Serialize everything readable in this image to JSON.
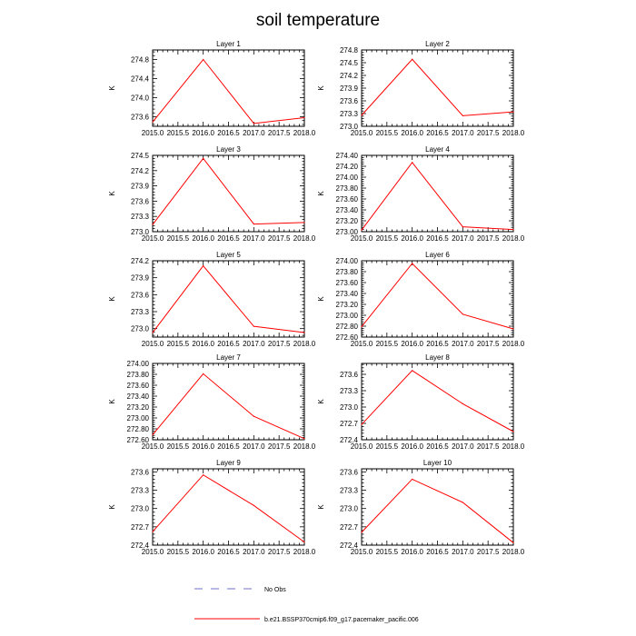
{
  "figure": {
    "title": "soil temperature",
    "legend": [
      {
        "label": "No Obs",
        "color": "#7070c8",
        "dash": true
      },
      {
        "label": "b.e21.BSSP370cmip6.f09_g17.pacemaker_pacific.006",
        "color": "#ff0000",
        "dash": false
      }
    ]
  },
  "chart_data": [
    {
      "type": "line",
      "title": "Layer 1",
      "ylabel": "K",
      "x": [
        2015.0,
        2016.0,
        2017.0,
        2018.0
      ],
      "series": [
        {
          "name": "b.e21.BSSP370cmip6.f09_g17.pacemaker_pacific.006",
          "values": [
            273.49,
            274.8,
            273.46,
            273.58
          ]
        }
      ],
      "xlim": [
        2015.0,
        2018.0
      ],
      "ylim": [
        273.4,
        275.0
      ],
      "xticks": [
        "2015.0",
        "2015.5",
        "2016.0",
        "2016.5",
        "2017.0",
        "2017.5",
        "2018.0"
      ],
      "yticks": [
        "273.6",
        "274.0",
        "274.4",
        "274.8"
      ]
    },
    {
      "type": "line",
      "title": "Layer 2",
      "ylabel": "K",
      "x": [
        2015.0,
        2016.0,
        2017.0,
        2018.0
      ],
      "series": [
        {
          "name": "b.e21.BSSP370cmip6.f09_g17.pacemaker_pacific.006",
          "values": [
            273.26,
            274.58,
            273.25,
            273.34
          ]
        }
      ],
      "xlim": [
        2015.0,
        2018.0
      ],
      "ylim": [
        273.0,
        274.8
      ],
      "xticks": [
        "2015.0",
        "2015.5",
        "2016.0",
        "2016.5",
        "2017.0",
        "2017.5",
        "2018.0"
      ],
      "yticks": [
        "273.0",
        "273.3",
        "273.6",
        "273.9",
        "274.2",
        "274.5",
        "274.8"
      ]
    },
    {
      "type": "line",
      "title": "Layer 3",
      "ylabel": "K",
      "x": [
        2015.0,
        2016.0,
        2017.0,
        2018.0
      ],
      "series": [
        {
          "name": "b.e21.BSSP370cmip6.f09_g17.pacemaker_pacific.006",
          "values": [
            273.14,
            274.44,
            273.15,
            273.18
          ]
        }
      ],
      "xlim": [
        2015.0,
        2018.0
      ],
      "ylim": [
        273.0,
        274.5
      ],
      "xticks": [
        "2015.0",
        "2015.5",
        "2016.0",
        "2016.5",
        "2017.0",
        "2017.5",
        "2018.0"
      ],
      "yticks": [
        "273.0",
        "273.3",
        "273.6",
        "273.9",
        "274.2",
        "274.5"
      ]
    },
    {
      "type": "line",
      "title": "Layer 4",
      "ylabel": "K",
      "x": [
        2015.0,
        2016.0,
        2017.0,
        2018.0
      ],
      "series": [
        {
          "name": "b.e21.BSSP370cmip6.f09_g17.pacemaker_pacific.006",
          "values": [
            273.03,
            274.27,
            273.09,
            273.04
          ]
        }
      ],
      "xlim": [
        2015.0,
        2018.0
      ],
      "ylim": [
        273.0,
        274.4
      ],
      "xticks": [
        "2015.0",
        "2015.5",
        "2016.0",
        "2016.5",
        "2017.0",
        "2017.5",
        "2018.0"
      ],
      "yticks": [
        "273.00",
        "273.20",
        "273.40",
        "273.60",
        "273.80",
        "274.00",
        "274.20",
        "274.40"
      ]
    },
    {
      "type": "line",
      "title": "Layer 5",
      "ylabel": "K",
      "x": [
        2015.0,
        2016.0,
        2017.0,
        2018.0
      ],
      "series": [
        {
          "name": "b.e21.BSSP370cmip6.f09_g17.pacemaker_pacific.006",
          "values": [
            272.93,
            274.11,
            273.04,
            272.93
          ]
        }
      ],
      "xlim": [
        2015.0,
        2018.0
      ],
      "ylim": [
        272.85,
        274.2
      ],
      "xticks": [
        "2015.0",
        "2015.5",
        "2016.0",
        "2016.5",
        "2017.0",
        "2017.5",
        "2018.0"
      ],
      "yticks": [
        "273.0",
        "273.3",
        "273.6",
        "273.9",
        "274.2"
      ]
    },
    {
      "type": "line",
      "title": "Layer 6",
      "ylabel": "K",
      "x": [
        2015.0,
        2016.0,
        2017.0,
        2018.0
      ],
      "series": [
        {
          "name": "b.e21.BSSP370cmip6.f09_g17.pacemaker_pacific.006",
          "values": [
            272.79,
            273.95,
            273.02,
            272.75
          ]
        }
      ],
      "xlim": [
        2015.0,
        2018.0
      ],
      "ylim": [
        272.6,
        274.0
      ],
      "xticks": [
        "2015.0",
        "2015.5",
        "2016.0",
        "2016.5",
        "2017.0",
        "2017.5",
        "2018.0"
      ],
      "yticks": [
        "272.60",
        "272.80",
        "273.00",
        "273.20",
        "273.40",
        "273.60",
        "273.80",
        "274.00"
      ]
    },
    {
      "type": "line",
      "title": "Layer 7",
      "ylabel": "K",
      "x": [
        2015.0,
        2016.0,
        2017.0,
        2018.0
      ],
      "series": [
        {
          "name": "b.e21.BSSP370cmip6.f09_g17.pacemaker_pacific.006",
          "values": [
            272.69,
            273.81,
            273.03,
            272.62
          ]
        }
      ],
      "xlim": [
        2015.0,
        2018.0
      ],
      "ylim": [
        272.6,
        274.0
      ],
      "xticks": [
        "2015.0",
        "2015.5",
        "2016.0",
        "2016.5",
        "2017.0",
        "2017.5",
        "2018.0"
      ],
      "yticks": [
        "272.60",
        "272.80",
        "273.00",
        "273.20",
        "273.40",
        "273.60",
        "273.80",
        "274.00"
      ]
    },
    {
      "type": "line",
      "title": "Layer 8",
      "ylabel": "K",
      "x": [
        2015.0,
        2016.0,
        2017.0,
        2018.0
      ],
      "series": [
        {
          "name": "b.e21.BSSP370cmip6.f09_g17.pacemaker_pacific.006",
          "values": [
            272.68,
            273.67,
            273.06,
            272.55
          ]
        }
      ],
      "xlim": [
        2015.0,
        2018.0
      ],
      "ylim": [
        272.4,
        273.8
      ],
      "xticks": [
        "2015.0",
        "2015.5",
        "2016.0",
        "2016.5",
        "2017.0",
        "2017.5",
        "2018.0"
      ],
      "yticks": [
        "272.4",
        "272.7",
        "273.0",
        "273.3",
        "273.6"
      ]
    },
    {
      "type": "line",
      "title": "Layer 9",
      "ylabel": "K",
      "x": [
        2015.0,
        2016.0,
        2017.0,
        2018.0
      ],
      "series": [
        {
          "name": "b.e21.BSSP370cmip6.f09_g17.pacemaker_pacific.006",
          "values": [
            272.62,
            273.55,
            273.05,
            272.45
          ]
        }
      ],
      "xlim": [
        2015.0,
        2018.0
      ],
      "ylim": [
        272.4,
        273.65
      ],
      "xticks": [
        "2015.0",
        "2015.5",
        "2016.0",
        "2016.5",
        "2017.0",
        "2017.5",
        "2018.0"
      ],
      "yticks": [
        "272.4",
        "272.7",
        "273.0",
        "273.3",
        "273.6"
      ]
    },
    {
      "type": "line",
      "title": "Layer 10",
      "ylabel": "K",
      "x": [
        2015.0,
        2016.0,
        2017.0,
        2018.0
      ],
      "series": [
        {
          "name": "b.e21.BSSP370cmip6.f09_g17.pacemaker_pacific.006",
          "values": [
            272.61,
            273.48,
            273.1,
            272.44
          ]
        }
      ],
      "xlim": [
        2015.0,
        2018.0
      ],
      "ylim": [
        272.4,
        273.65
      ],
      "xticks": [
        "2015.0",
        "2015.5",
        "2016.0",
        "2016.5",
        "2017.0",
        "2017.5",
        "2018.0"
      ],
      "yticks": [
        "272.4",
        "272.7",
        "273.0",
        "273.3",
        "273.6"
      ]
    }
  ]
}
